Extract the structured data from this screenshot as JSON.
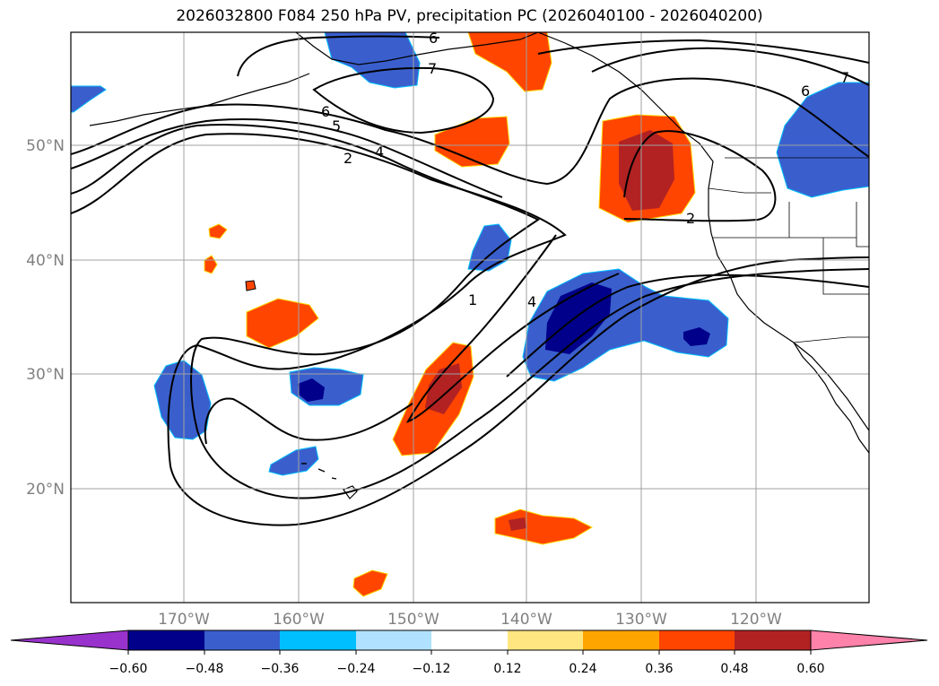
{
  "title": "2026032800 F084 250 hPa PV, precipitation PC (2026040100 - 2026040200)",
  "latitude_labels": [
    "50°N",
    "40°N",
    "30°N",
    "20°N"
  ],
  "longitude_labels": [
    "170°W",
    "160°W",
    "150°W",
    "140°W",
    "130°W",
    "120°W"
  ],
  "colorbar": {
    "tick_labels": [
      "−0.60",
      "−0.48",
      "−0.36",
      "−0.24",
      "−0.12",
      "0.12",
      "0.24",
      "0.36",
      "0.48",
      "0.60"
    ],
    "colors": [
      "#9932cc",
      "#00008b",
      "#3a5fcd",
      "#00bfff",
      "#b0e2ff",
      "#ffffff",
      "#ffe680",
      "#ffa500",
      "#ff4500",
      "#b22222",
      "#ff82ab"
    ]
  },
  "contour_labels": [
    "1",
    "2",
    "2",
    "4",
    "4",
    "5",
    "6",
    "6",
    "6",
    "7",
    "7"
  ]
}
